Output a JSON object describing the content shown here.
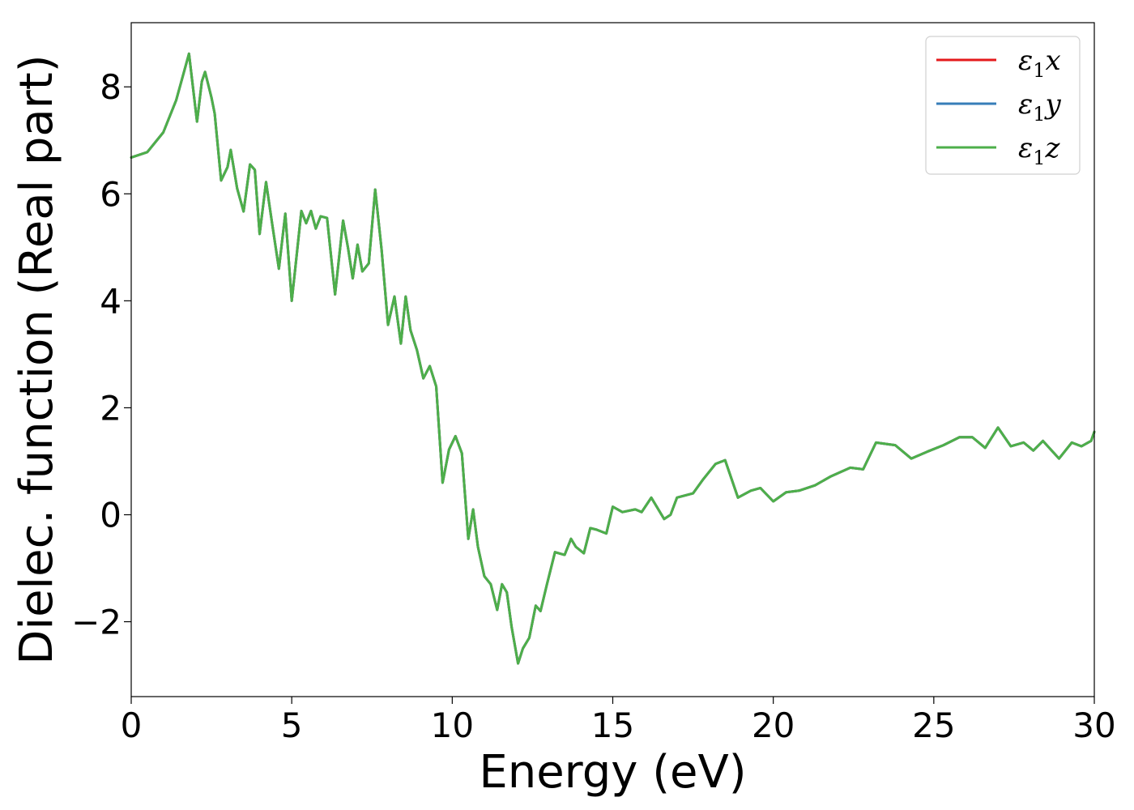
{
  "chart_data": {
    "type": "line",
    "title": "",
    "xlabel": "Energy (eV)",
    "ylabel": "Dielec. function (Real part)",
    "xlim": [
      0,
      30
    ],
    "ylim": [
      -3.4,
      9.2
    ],
    "x_ticks": [
      0,
      5,
      10,
      15,
      20,
      25,
      30
    ],
    "x_tick_labels": [
      "0",
      "5",
      "10",
      "15",
      "20",
      "25",
      "30"
    ],
    "y_ticks": [
      -2,
      0,
      2,
      4,
      6,
      8
    ],
    "y_tick_labels": [
      "−2",
      "0",
      "2",
      "4",
      "6",
      "8"
    ],
    "grid": false,
    "legend_position": "top-right",
    "series": [
      {
        "name": "ε₁x",
        "legend_base": "ε",
        "legend_sub": "1",
        "legend_var": "x",
        "color": "#e41a1c",
        "x": [
          0.0,
          0.5,
          1.0,
          1.4,
          1.8,
          2.0,
          2.05,
          2.2,
          2.3,
          2.5,
          2.6,
          2.8,
          3.0,
          3.1,
          3.3,
          3.5,
          3.7,
          3.85,
          4.0,
          4.2,
          4.4,
          4.6,
          4.8,
          5.0,
          5.1,
          5.3,
          5.45,
          5.6,
          5.75,
          5.9,
          6.1,
          6.35,
          6.6,
          6.75,
          6.9,
          7.05,
          7.2,
          7.4,
          7.6,
          7.8,
          8.0,
          8.2,
          8.4,
          8.55,
          8.7,
          8.9,
          9.1,
          9.3,
          9.5,
          9.7,
          9.9,
          10.1,
          10.3,
          10.5,
          10.65,
          10.8,
          11.0,
          11.2,
          11.4,
          11.55,
          11.7,
          11.85,
          12.05,
          12.2,
          12.4,
          12.6,
          12.75,
          12.95,
          13.2,
          13.5,
          13.7,
          13.85,
          14.1,
          14.3,
          14.5,
          14.8,
          15.0,
          15.3,
          15.7,
          15.9,
          16.2,
          16.6,
          16.8,
          17.0,
          17.5,
          17.8,
          18.2,
          18.5,
          18.9,
          19.3,
          19.6,
          20.0,
          20.4,
          20.8,
          21.3,
          21.8,
          22.4,
          22.8,
          23.2,
          23.8,
          24.3,
          24.8,
          25.3,
          25.8,
          26.2,
          26.6,
          27.0,
          27.4,
          27.8,
          28.1,
          28.4,
          28.9,
          29.3,
          29.6,
          29.9,
          30.0
        ],
        "y": [
          6.68,
          6.78,
          7.15,
          7.75,
          8.62,
          7.6,
          7.35,
          8.1,
          8.28,
          7.8,
          7.5,
          6.25,
          6.5,
          6.82,
          6.1,
          5.67,
          6.55,
          6.45,
          5.25,
          6.22,
          5.4,
          4.6,
          5.63,
          4.0,
          4.55,
          5.68,
          5.45,
          5.68,
          5.35,
          5.58,
          5.55,
          4.12,
          5.5,
          5.0,
          4.42,
          5.05,
          4.55,
          4.7,
          6.08,
          4.95,
          3.55,
          4.08,
          3.2,
          4.08,
          3.45,
          3.08,
          2.55,
          2.78,
          2.4,
          0.6,
          1.22,
          1.47,
          1.15,
          -0.45,
          0.1,
          -0.6,
          -1.15,
          -1.3,
          -1.78,
          -1.3,
          -1.45,
          -2.1,
          -2.78,
          -2.5,
          -2.3,
          -1.7,
          -1.8,
          -1.3,
          -0.7,
          -0.75,
          -0.45,
          -0.6,
          -0.72,
          -0.25,
          -0.28,
          -0.35,
          0.15,
          0.05,
          0.1,
          0.05,
          0.32,
          -0.08,
          0.0,
          0.32,
          0.4,
          0.65,
          0.95,
          1.02,
          0.32,
          0.45,
          0.5,
          0.25,
          0.42,
          0.45,
          0.55,
          0.72,
          0.88,
          0.85,
          1.35,
          1.3,
          1.05,
          1.18,
          1.3,
          1.45,
          1.45,
          1.25,
          1.63,
          1.28,
          1.35,
          1.2,
          1.38,
          1.05,
          1.35,
          1.28,
          1.38,
          1.55
        ]
      },
      {
        "name": "ε₁y",
        "legend_base": "ε",
        "legend_sub": "1",
        "legend_var": "y",
        "color": "#377eb8",
        "x": [
          0.0,
          0.5,
          1.0,
          1.4,
          1.8,
          2.0,
          2.05,
          2.2,
          2.3,
          2.5,
          2.6,
          2.8,
          3.0,
          3.1,
          3.3,
          3.5,
          3.7,
          3.85,
          4.0,
          4.2,
          4.4,
          4.6,
          4.8,
          5.0,
          5.1,
          5.3,
          5.45,
          5.6,
          5.75,
          5.9,
          6.1,
          6.35,
          6.6,
          6.75,
          6.9,
          7.05,
          7.2,
          7.4,
          7.6,
          7.8,
          8.0,
          8.2,
          8.4,
          8.55,
          8.7,
          8.9,
          9.1,
          9.3,
          9.5,
          9.7,
          9.9,
          10.1,
          10.3,
          10.5,
          10.65,
          10.8,
          11.0,
          11.2,
          11.4,
          11.55,
          11.7,
          11.85,
          12.05,
          12.2,
          12.4,
          12.6,
          12.75,
          12.95,
          13.2,
          13.5,
          13.7,
          13.85,
          14.1,
          14.3,
          14.5,
          14.8,
          15.0,
          15.3,
          15.7,
          15.9,
          16.2,
          16.6,
          16.8,
          17.0,
          17.5,
          17.8,
          18.2,
          18.5,
          18.9,
          19.3,
          19.6,
          20.0,
          20.4,
          20.8,
          21.3,
          21.8,
          22.4,
          22.8,
          23.2,
          23.8,
          24.3,
          24.8,
          25.3,
          25.8,
          26.2,
          26.6,
          27.0,
          27.4,
          27.8,
          28.1,
          28.4,
          28.9,
          29.3,
          29.6,
          29.9,
          30.0
        ],
        "y": [
          6.68,
          6.78,
          7.15,
          7.75,
          8.62,
          7.6,
          7.35,
          8.1,
          8.28,
          7.8,
          7.5,
          6.25,
          6.5,
          6.82,
          6.1,
          5.67,
          6.55,
          6.45,
          5.25,
          6.22,
          5.4,
          4.6,
          5.63,
          4.0,
          4.55,
          5.68,
          5.45,
          5.68,
          5.35,
          5.58,
          5.55,
          4.12,
          5.5,
          5.0,
          4.42,
          5.05,
          4.55,
          4.7,
          6.08,
          4.95,
          3.55,
          4.08,
          3.2,
          4.08,
          3.45,
          3.08,
          2.55,
          2.78,
          2.4,
          0.6,
          1.22,
          1.47,
          1.15,
          -0.45,
          0.1,
          -0.6,
          -1.15,
          -1.3,
          -1.78,
          -1.3,
          -1.45,
          -2.1,
          -2.78,
          -2.5,
          -2.3,
          -1.7,
          -1.8,
          -1.3,
          -0.7,
          -0.75,
          -0.45,
          -0.6,
          -0.72,
          -0.25,
          -0.28,
          -0.35,
          0.15,
          0.05,
          0.1,
          0.05,
          0.32,
          -0.08,
          0.0,
          0.32,
          0.4,
          0.65,
          0.95,
          1.02,
          0.32,
          0.45,
          0.5,
          0.25,
          0.42,
          0.45,
          0.55,
          0.72,
          0.88,
          0.85,
          1.35,
          1.3,
          1.05,
          1.18,
          1.3,
          1.45,
          1.45,
          1.25,
          1.63,
          1.28,
          1.35,
          1.2,
          1.38,
          1.05,
          1.35,
          1.28,
          1.38,
          1.55
        ]
      },
      {
        "name": "ε₁z",
        "legend_base": "ε",
        "legend_sub": "1",
        "legend_var": "z",
        "color": "#4daf4a",
        "x": [
          0.0,
          0.5,
          1.0,
          1.4,
          1.8,
          2.0,
          2.05,
          2.2,
          2.3,
          2.5,
          2.6,
          2.8,
          3.0,
          3.1,
          3.3,
          3.5,
          3.7,
          3.85,
          4.0,
          4.2,
          4.4,
          4.6,
          4.8,
          5.0,
          5.1,
          5.3,
          5.45,
          5.6,
          5.75,
          5.9,
          6.1,
          6.35,
          6.6,
          6.75,
          6.9,
          7.05,
          7.2,
          7.4,
          7.6,
          7.8,
          8.0,
          8.2,
          8.4,
          8.55,
          8.7,
          8.9,
          9.1,
          9.3,
          9.5,
          9.7,
          9.9,
          10.1,
          10.3,
          10.5,
          10.65,
          10.8,
          11.0,
          11.2,
          11.4,
          11.55,
          11.7,
          11.85,
          12.05,
          12.2,
          12.4,
          12.6,
          12.75,
          12.95,
          13.2,
          13.5,
          13.7,
          13.85,
          14.1,
          14.3,
          14.5,
          14.8,
          15.0,
          15.3,
          15.7,
          15.9,
          16.2,
          16.6,
          16.8,
          17.0,
          17.5,
          17.8,
          18.2,
          18.5,
          18.9,
          19.3,
          19.6,
          20.0,
          20.4,
          20.8,
          21.3,
          21.8,
          22.4,
          22.8,
          23.2,
          23.8,
          24.3,
          24.8,
          25.3,
          25.8,
          26.2,
          26.6,
          27.0,
          27.4,
          27.8,
          28.1,
          28.4,
          28.9,
          29.3,
          29.6,
          29.9,
          30.0
        ],
        "y": [
          6.68,
          6.78,
          7.15,
          7.75,
          8.62,
          7.6,
          7.35,
          8.1,
          8.28,
          7.8,
          7.5,
          6.25,
          6.5,
          6.82,
          6.1,
          5.67,
          6.55,
          6.45,
          5.25,
          6.22,
          5.4,
          4.6,
          5.63,
          4.0,
          4.55,
          5.68,
          5.45,
          5.68,
          5.35,
          5.58,
          5.55,
          4.12,
          5.5,
          5.0,
          4.42,
          5.05,
          4.55,
          4.7,
          6.08,
          4.95,
          3.55,
          4.08,
          3.2,
          4.08,
          3.45,
          3.08,
          2.55,
          2.78,
          2.4,
          0.6,
          1.22,
          1.47,
          1.15,
          -0.45,
          0.1,
          -0.6,
          -1.15,
          -1.3,
          -1.78,
          -1.3,
          -1.45,
          -2.1,
          -2.78,
          -2.5,
          -2.3,
          -1.7,
          -1.8,
          -1.3,
          -0.7,
          -0.75,
          -0.45,
          -0.6,
          -0.72,
          -0.25,
          -0.28,
          -0.35,
          0.15,
          0.05,
          0.1,
          0.05,
          0.32,
          -0.08,
          0.0,
          0.32,
          0.4,
          0.65,
          0.95,
          1.02,
          0.32,
          0.45,
          0.5,
          0.25,
          0.42,
          0.45,
          0.55,
          0.72,
          0.88,
          0.85,
          1.35,
          1.3,
          1.05,
          1.18,
          1.3,
          1.45,
          1.45,
          1.25,
          1.63,
          1.28,
          1.35,
          1.2,
          1.38,
          1.05,
          1.35,
          1.28,
          1.38,
          1.55
        ]
      }
    ]
  }
}
